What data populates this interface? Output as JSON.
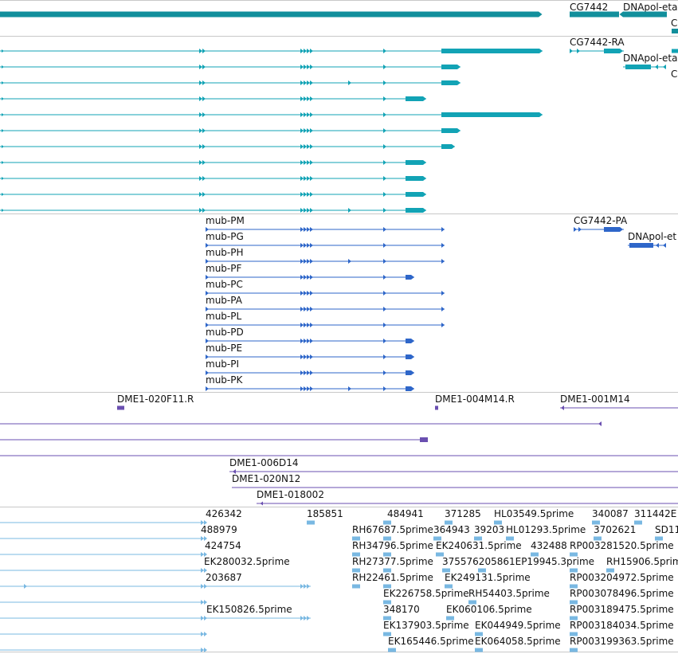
{
  "colors": {
    "gene": "#128f9c",
    "transcript": "#12a3b5",
    "cds": "#2e66c9",
    "cdna": "#6a4fb0",
    "est": "#79b8e2",
    "separator": "#c8c8c8",
    "label": "#111111"
  },
  "tracks": {
    "gene": {
      "labels": [
        "CG7442",
        "DNApol-eta",
        "C"
      ]
    },
    "transcripts": {
      "labels": [
        "CG7442-RA",
        "DNApol-eta",
        "C"
      ]
    },
    "cds": {
      "labels": [
        "mub-PM",
        "mub-PG",
        "mub-PH",
        "mub-PF",
        "mub-PC",
        "mub-PA",
        "mub-PL",
        "mub-PD",
        "mub-PE",
        "mub-PI",
        "mub-PK",
        "CG7442-PA",
        "DNApol-et"
      ]
    },
    "cdna": {
      "labels": [
        "DME1-020F11.R",
        "DME1-004M14.R",
        "DME1-001M14",
        "DME1-006D14",
        "DME1-020N12",
        "DME1-018002"
      ]
    },
    "est": {
      "labels": [
        "426342",
        "185851",
        "484941",
        "371285",
        "HL03549.5prime",
        "340087",
        "311442E",
        "488979",
        "RH67687.5prime",
        "364943",
        "39203",
        "HL01293.5prime",
        "3702621",
        "SD11",
        "424754",
        "RH34796.5prime",
        "EK240631.5prime",
        "432488",
        "RP003281520.5prime",
        "EK280032.5prime",
        "RH27377.5prime",
        "375576205861EP19945.3prime",
        "RH15906.5prime",
        "203687",
        "RH22461.5prime",
        "EK249131.5prime",
        "RP003204972.5prime",
        "EK226758.5prime",
        "RH54403.5prime",
        "RP003078496.5prime",
        "EK150826.5prime",
        "348170",
        "EK060106.5prime",
        "RP003189475.5prime",
        "EK137903.5prime",
        "EK044949.5prime",
        "RP003184034.5prime",
        "EK165446.5prime",
        "EK064058.5prime",
        "RP003199363.5prime"
      ]
    }
  }
}
